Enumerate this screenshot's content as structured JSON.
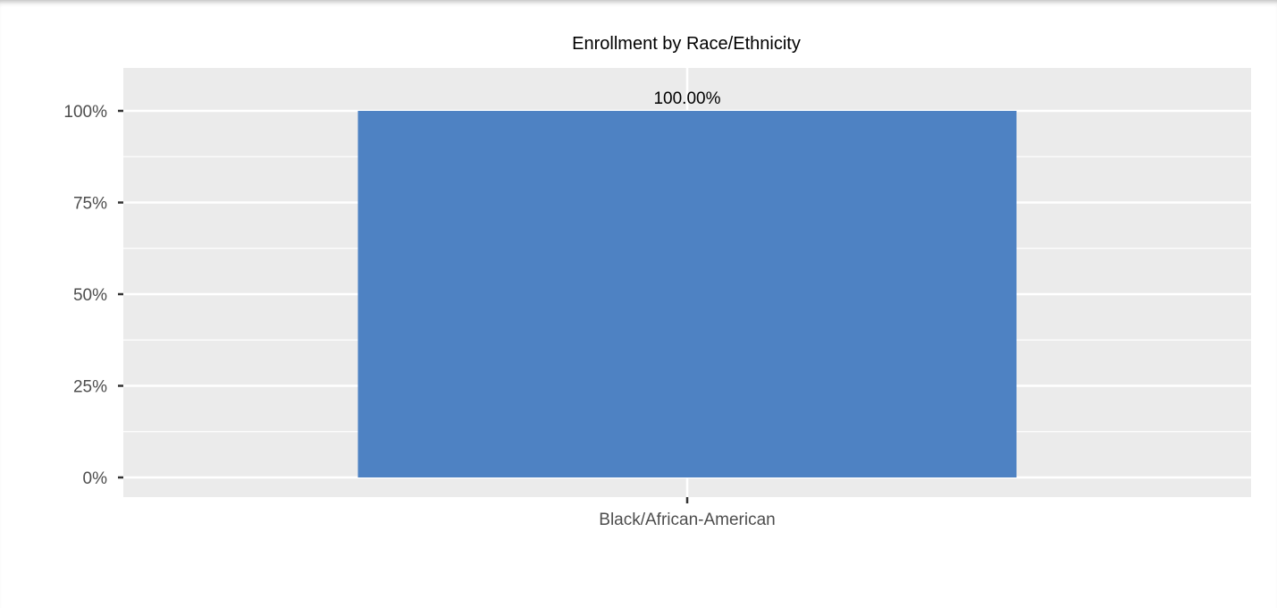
{
  "chart_data": {
    "type": "bar",
    "title": "Enrollment by Race/Ethnicity",
    "categories": [
      "Black/African-American"
    ],
    "values": [
      100
    ],
    "data_labels": [
      "100.00%"
    ],
    "ylim": [
      0,
      100
    ],
    "yticks": [
      0,
      25,
      50,
      75,
      100
    ],
    "ytick_labels": [
      "0%",
      "25%",
      "50%",
      "75%",
      "100%"
    ],
    "xlabel": "",
    "ylabel": "",
    "grid": true,
    "legend": "none",
    "colors": {
      "bar": "#4e82c3",
      "panel": "#ebebeb",
      "grid": "#ffffff"
    }
  }
}
